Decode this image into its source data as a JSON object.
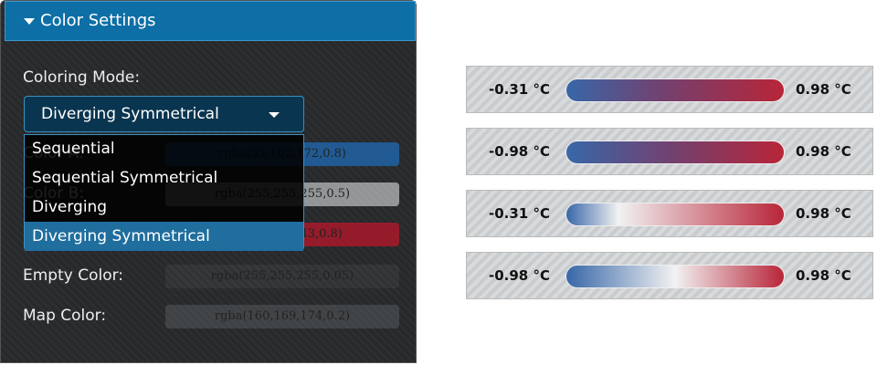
{
  "panel": {
    "title": "Color Settings",
    "mode_label": "Coloring Mode:",
    "mode_selected": "Diverging Symmetrical",
    "options": [
      "Sequential",
      "Sequential Symmetrical",
      "Diverging",
      "Diverging Symmetrical"
    ],
    "rows": [
      {
        "label": "Color A:",
        "value": "rgba(33,102,172,0.8)"
      },
      {
        "label": "Color B:",
        "value": "rgba(255,255,255,0.5)"
      },
      {
        "value": "rgba(178,24,43,0.8)"
      },
      {
        "label": "Empty Color:",
        "value": "rgba(255,255,255,0.05)"
      },
      {
        "label": "Map Color:",
        "value": "rgba(160,169,174,0.2)"
      }
    ]
  },
  "legends": [
    {
      "min": "-0.31 °C",
      "max": "0.98 °C"
    },
    {
      "min": "-0.98 °C",
      "max": "0.98 °C"
    },
    {
      "min": "-0.31 °C",
      "max": "0.98 °C"
    },
    {
      "min": "-0.98 °C",
      "max": "0.98 °C"
    }
  ]
}
